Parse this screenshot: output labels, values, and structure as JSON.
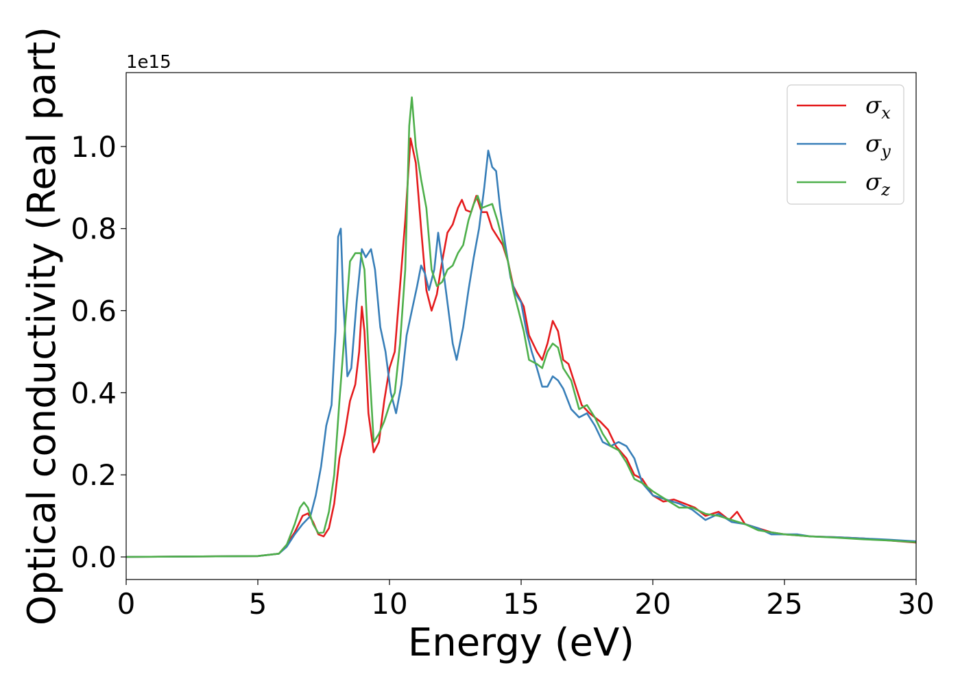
{
  "chart_data": {
    "type": "line",
    "xlabel": "Energy (eV)",
    "ylabel": "Optical conductivity (Real part)",
    "y_offset_label": "1e15",
    "xlim": [
      0,
      30
    ],
    "ylim": [
      -0.055,
      1.18
    ],
    "x_ticks": [
      0,
      5,
      10,
      15,
      20,
      25,
      30
    ],
    "y_ticks": [
      0.0,
      0.2,
      0.4,
      0.6,
      0.8,
      1.0
    ],
    "x_tick_labels": [
      "0",
      "5",
      "10",
      "15",
      "20",
      "25",
      "30"
    ],
    "y_tick_labels": [
      "0.0",
      "0.2",
      "0.4",
      "0.6",
      "0.8",
      "1.0"
    ],
    "grid": false,
    "legend_position": "top-right",
    "series": [
      {
        "name": "σx",
        "symbol": "σ",
        "subscript": "x",
        "color": "#e41a1c",
        "points": [
          [
            0,
            0
          ],
          [
            5,
            0.002
          ],
          [
            5.8,
            0.008
          ],
          [
            6.1,
            0.03
          ],
          [
            6.4,
            0.06
          ],
          [
            6.7,
            0.1
          ],
          [
            6.9,
            0.106
          ],
          [
            7.1,
            0.085
          ],
          [
            7.3,
            0.055
          ],
          [
            7.5,
            0.05
          ],
          [
            7.7,
            0.07
          ],
          [
            7.9,
            0.13
          ],
          [
            8.1,
            0.24
          ],
          [
            8.3,
            0.3
          ],
          [
            8.5,
            0.38
          ],
          [
            8.7,
            0.42
          ],
          [
            8.85,
            0.5
          ],
          [
            8.95,
            0.61
          ],
          [
            9.05,
            0.55
          ],
          [
            9.2,
            0.35
          ],
          [
            9.4,
            0.255
          ],
          [
            9.6,
            0.28
          ],
          [
            9.8,
            0.38
          ],
          [
            10.0,
            0.46
          ],
          [
            10.2,
            0.5
          ],
          [
            10.4,
            0.66
          ],
          [
            10.6,
            0.82
          ],
          [
            10.8,
            1.02
          ],
          [
            11.0,
            0.96
          ],
          [
            11.2,
            0.8
          ],
          [
            11.4,
            0.65
          ],
          [
            11.6,
            0.6
          ],
          [
            11.8,
            0.64
          ],
          [
            12.0,
            0.72
          ],
          [
            12.2,
            0.79
          ],
          [
            12.4,
            0.81
          ],
          [
            12.6,
            0.85
          ],
          [
            12.75,
            0.87
          ],
          [
            12.9,
            0.845
          ],
          [
            13.1,
            0.84
          ],
          [
            13.3,
            0.88
          ],
          [
            13.5,
            0.84
          ],
          [
            13.7,
            0.84
          ],
          [
            13.9,
            0.8
          ],
          [
            14.1,
            0.78
          ],
          [
            14.3,
            0.76
          ],
          [
            14.5,
            0.72
          ],
          [
            14.7,
            0.66
          ],
          [
            14.9,
            0.635
          ],
          [
            15.1,
            0.61
          ],
          [
            15.3,
            0.54
          ],
          [
            15.6,
            0.5
          ],
          [
            15.8,
            0.48
          ],
          [
            16.0,
            0.52
          ],
          [
            16.2,
            0.575
          ],
          [
            16.4,
            0.55
          ],
          [
            16.6,
            0.48
          ],
          [
            16.8,
            0.47
          ],
          [
            17.0,
            0.43
          ],
          [
            17.3,
            0.37
          ],
          [
            17.6,
            0.35
          ],
          [
            18.0,
            0.33
          ],
          [
            18.3,
            0.31
          ],
          [
            18.6,
            0.27
          ],
          [
            19.0,
            0.24
          ],
          [
            19.3,
            0.2
          ],
          [
            19.6,
            0.19
          ],
          [
            20.0,
            0.15
          ],
          [
            20.4,
            0.135
          ],
          [
            20.8,
            0.14
          ],
          [
            21.2,
            0.13
          ],
          [
            21.6,
            0.12
          ],
          [
            22.0,
            0.1
          ],
          [
            22.5,
            0.11
          ],
          [
            22.9,
            0.09
          ],
          [
            23.2,
            0.11
          ],
          [
            23.5,
            0.08
          ],
          [
            24.0,
            0.07
          ],
          [
            24.5,
            0.06
          ],
          [
            25.0,
            0.055
          ],
          [
            26.0,
            0.05
          ],
          [
            27.0,
            0.048
          ],
          [
            28.0,
            0.045
          ],
          [
            29.0,
            0.04
          ],
          [
            30.0,
            0.035
          ]
        ]
      },
      {
        "name": "σy",
        "symbol": "σ",
        "subscript": "y",
        "color": "#377eb8",
        "points": [
          [
            0,
            0
          ],
          [
            5,
            0.002
          ],
          [
            5.8,
            0.008
          ],
          [
            6.1,
            0.025
          ],
          [
            6.4,
            0.055
          ],
          [
            6.7,
            0.08
          ],
          [
            7.0,
            0.1
          ],
          [
            7.2,
            0.15
          ],
          [
            7.4,
            0.22
          ],
          [
            7.6,
            0.32
          ],
          [
            7.8,
            0.37
          ],
          [
            7.95,
            0.55
          ],
          [
            8.05,
            0.78
          ],
          [
            8.15,
            0.8
          ],
          [
            8.25,
            0.62
          ],
          [
            8.4,
            0.44
          ],
          [
            8.55,
            0.46
          ],
          [
            8.75,
            0.62
          ],
          [
            8.95,
            0.75
          ],
          [
            9.1,
            0.73
          ],
          [
            9.3,
            0.75
          ],
          [
            9.45,
            0.7
          ],
          [
            9.65,
            0.56
          ],
          [
            9.85,
            0.5
          ],
          [
            10.05,
            0.4
          ],
          [
            10.25,
            0.35
          ],
          [
            10.45,
            0.42
          ],
          [
            10.65,
            0.54
          ],
          [
            10.85,
            0.6
          ],
          [
            11.05,
            0.66
          ],
          [
            11.2,
            0.71
          ],
          [
            11.35,
            0.69
          ],
          [
            11.5,
            0.65
          ],
          [
            11.7,
            0.7
          ],
          [
            11.85,
            0.79
          ],
          [
            12.0,
            0.72
          ],
          [
            12.2,
            0.62
          ],
          [
            12.4,
            0.52
          ],
          [
            12.55,
            0.48
          ],
          [
            12.8,
            0.56
          ],
          [
            13.0,
            0.65
          ],
          [
            13.2,
            0.73
          ],
          [
            13.4,
            0.8
          ],
          [
            13.6,
            0.9
          ],
          [
            13.75,
            0.99
          ],
          [
            13.9,
            0.95
          ],
          [
            14.05,
            0.94
          ],
          [
            14.2,
            0.85
          ],
          [
            14.4,
            0.76
          ],
          [
            14.6,
            0.68
          ],
          [
            14.8,
            0.64
          ],
          [
            15.0,
            0.62
          ],
          [
            15.2,
            0.55
          ],
          [
            15.4,
            0.5
          ],
          [
            15.6,
            0.46
          ],
          [
            15.8,
            0.415
          ],
          [
            16.0,
            0.415
          ],
          [
            16.2,
            0.44
          ],
          [
            16.4,
            0.43
          ],
          [
            16.6,
            0.41
          ],
          [
            16.9,
            0.36
          ],
          [
            17.2,
            0.34
          ],
          [
            17.5,
            0.35
          ],
          [
            17.8,
            0.32
          ],
          [
            18.1,
            0.28
          ],
          [
            18.4,
            0.27
          ],
          [
            18.7,
            0.28
          ],
          [
            19.0,
            0.27
          ],
          [
            19.3,
            0.24
          ],
          [
            19.6,
            0.18
          ],
          [
            20.0,
            0.15
          ],
          [
            20.5,
            0.14
          ],
          [
            21.0,
            0.13
          ],
          [
            21.5,
            0.115
          ],
          [
            22.0,
            0.09
          ],
          [
            22.5,
            0.105
          ],
          [
            23.0,
            0.085
          ],
          [
            23.5,
            0.08
          ],
          [
            24.0,
            0.07
          ],
          [
            24.5,
            0.055
          ],
          [
            25.0,
            0.055
          ],
          [
            25.5,
            0.055
          ],
          [
            26.0,
            0.05
          ],
          [
            27.0,
            0.048
          ],
          [
            28.0,
            0.045
          ],
          [
            29.0,
            0.042
          ],
          [
            30.0,
            0.038
          ]
        ]
      },
      {
        "name": "σz",
        "symbol": "σ",
        "subscript": "z",
        "color": "#4daf4a",
        "points": [
          [
            0,
            0
          ],
          [
            5,
            0.002
          ],
          [
            5.8,
            0.008
          ],
          [
            6.1,
            0.03
          ],
          [
            6.4,
            0.08
          ],
          [
            6.6,
            0.12
          ],
          [
            6.75,
            0.133
          ],
          [
            6.9,
            0.12
          ],
          [
            7.1,
            0.08
          ],
          [
            7.3,
            0.058
          ],
          [
            7.5,
            0.06
          ],
          [
            7.7,
            0.11
          ],
          [
            7.9,
            0.2
          ],
          [
            8.1,
            0.38
          ],
          [
            8.3,
            0.55
          ],
          [
            8.5,
            0.72
          ],
          [
            8.7,
            0.74
          ],
          [
            8.9,
            0.74
          ],
          [
            9.05,
            0.7
          ],
          [
            9.2,
            0.5
          ],
          [
            9.4,
            0.28
          ],
          [
            9.6,
            0.3
          ],
          [
            9.8,
            0.33
          ],
          [
            10.0,
            0.37
          ],
          [
            10.2,
            0.4
          ],
          [
            10.4,
            0.52
          ],
          [
            10.6,
            0.7
          ],
          [
            10.75,
            1.05
          ],
          [
            10.85,
            1.12
          ],
          [
            11.0,
            1.0
          ],
          [
            11.2,
            0.92
          ],
          [
            11.4,
            0.85
          ],
          [
            11.6,
            0.7
          ],
          [
            11.8,
            0.66
          ],
          [
            12.0,
            0.67
          ],
          [
            12.2,
            0.7
          ],
          [
            12.4,
            0.71
          ],
          [
            12.6,
            0.74
          ],
          [
            12.8,
            0.76
          ],
          [
            13.0,
            0.82
          ],
          [
            13.2,
            0.86
          ],
          [
            13.35,
            0.88
          ],
          [
            13.5,
            0.85
          ],
          [
            13.7,
            0.855
          ],
          [
            13.9,
            0.86
          ],
          [
            14.1,
            0.82
          ],
          [
            14.3,
            0.77
          ],
          [
            14.5,
            0.72
          ],
          [
            14.7,
            0.65
          ],
          [
            14.9,
            0.6
          ],
          [
            15.1,
            0.55
          ],
          [
            15.3,
            0.48
          ],
          [
            15.6,
            0.47
          ],
          [
            15.8,
            0.46
          ],
          [
            16.0,
            0.5
          ],
          [
            16.2,
            0.52
          ],
          [
            16.4,
            0.51
          ],
          [
            16.6,
            0.46
          ],
          [
            16.9,
            0.43
          ],
          [
            17.2,
            0.36
          ],
          [
            17.5,
            0.37
          ],
          [
            17.8,
            0.34
          ],
          [
            18.1,
            0.3
          ],
          [
            18.4,
            0.27
          ],
          [
            18.7,
            0.26
          ],
          [
            19.0,
            0.23
          ],
          [
            19.3,
            0.19
          ],
          [
            19.6,
            0.18
          ],
          [
            20.0,
            0.16
          ],
          [
            20.5,
            0.14
          ],
          [
            21.0,
            0.12
          ],
          [
            21.5,
            0.12
          ],
          [
            22.0,
            0.105
          ],
          [
            22.5,
            0.1
          ],
          [
            23.0,
            0.09
          ],
          [
            23.5,
            0.08
          ],
          [
            24.0,
            0.065
          ],
          [
            24.5,
            0.06
          ],
          [
            25.0,
            0.055
          ],
          [
            26.0,
            0.05
          ],
          [
            27.0,
            0.047
          ],
          [
            28.0,
            0.043
          ],
          [
            29.0,
            0.04
          ],
          [
            30.0,
            0.036
          ]
        ]
      }
    ]
  }
}
